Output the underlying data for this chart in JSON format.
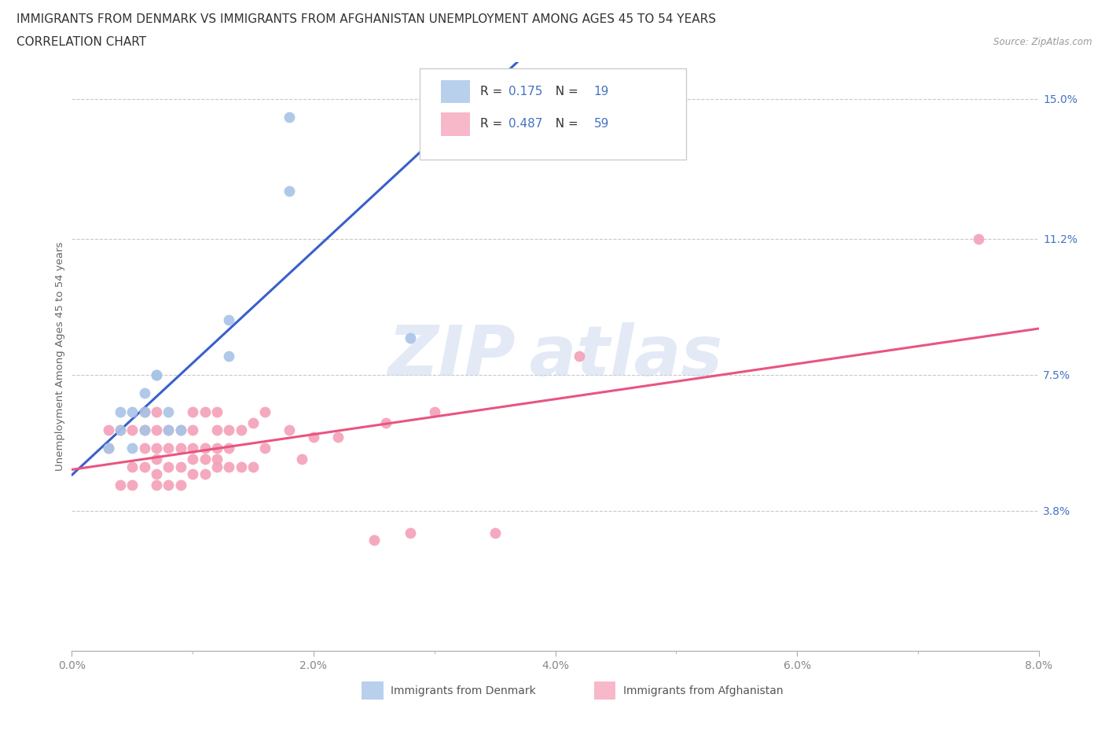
{
  "title_line1": "IMMIGRANTS FROM DENMARK VS IMMIGRANTS FROM AFGHANISTAN UNEMPLOYMENT AMONG AGES 45 TO 54 YEARS",
  "title_line2": "CORRELATION CHART",
  "source_text": "Source: ZipAtlas.com",
  "ylabel": "Unemployment Among Ages 45 to 54 years",
  "xlim": [
    0.0,
    0.08
  ],
  "ylim": [
    0.0,
    0.16
  ],
  "xtick_labels": [
    "0.0%",
    "",
    "2.0%",
    "",
    "4.0%",
    "",
    "6.0%",
    "",
    "8.0%"
  ],
  "xtick_values": [
    0.0,
    0.01,
    0.02,
    0.03,
    0.04,
    0.05,
    0.06,
    0.07,
    0.08
  ],
  "xtick_major_labels": [
    "0.0%",
    "2.0%",
    "4.0%",
    "6.0%",
    "8.0%"
  ],
  "xtick_major_values": [
    0.0,
    0.02,
    0.04,
    0.06,
    0.08
  ],
  "ytick_labels": [
    "3.8%",
    "7.5%",
    "11.2%",
    "15.0%"
  ],
  "ytick_values": [
    0.038,
    0.075,
    0.112,
    0.15
  ],
  "denmark_R": "0.175",
  "denmark_N": "19",
  "afghanistan_R": "0.487",
  "afghanistan_N": "59",
  "denmark_scatter_color": "#a8c4e6",
  "afghanistan_scatter_color": "#f4a0b8",
  "denmark_line_color": "#3a5fcc",
  "afghanistan_line_color": "#e85580",
  "denmark_legend_color": "#b8d0eb",
  "afghanistan_legend_color": "#f7b8ca",
  "watermark_color": "#ccd9f0",
  "denmark_scatter_x": [
    0.003,
    0.004,
    0.004,
    0.005,
    0.005,
    0.006,
    0.006,
    0.006,
    0.007,
    0.007,
    0.008,
    0.008,
    0.009,
    0.013,
    0.028,
    0.013,
    0.018,
    0.018,
    0.03
  ],
  "denmark_scatter_y": [
    0.055,
    0.06,
    0.065,
    0.055,
    0.065,
    0.06,
    0.065,
    0.07,
    0.075,
    0.075,
    0.06,
    0.065,
    0.06,
    0.08,
    0.085,
    0.09,
    0.125,
    0.145,
    0.155
  ],
  "afghanistan_scatter_x": [
    0.003,
    0.003,
    0.004,
    0.004,
    0.005,
    0.005,
    0.005,
    0.006,
    0.006,
    0.006,
    0.006,
    0.007,
    0.007,
    0.007,
    0.007,
    0.007,
    0.007,
    0.008,
    0.008,
    0.008,
    0.008,
    0.009,
    0.009,
    0.009,
    0.009,
    0.01,
    0.01,
    0.01,
    0.01,
    0.01,
    0.011,
    0.011,
    0.011,
    0.011,
    0.012,
    0.012,
    0.012,
    0.012,
    0.012,
    0.013,
    0.013,
    0.013,
    0.014,
    0.014,
    0.015,
    0.015,
    0.016,
    0.016,
    0.018,
    0.019,
    0.02,
    0.022,
    0.025,
    0.026,
    0.028,
    0.03,
    0.035,
    0.042,
    0.075
  ],
  "afghanistan_scatter_y": [
    0.055,
    0.06,
    0.045,
    0.06,
    0.045,
    0.05,
    0.06,
    0.05,
    0.055,
    0.06,
    0.065,
    0.045,
    0.048,
    0.052,
    0.055,
    0.06,
    0.065,
    0.045,
    0.05,
    0.055,
    0.06,
    0.045,
    0.05,
    0.055,
    0.06,
    0.048,
    0.052,
    0.055,
    0.06,
    0.065,
    0.048,
    0.052,
    0.055,
    0.065,
    0.05,
    0.052,
    0.055,
    0.06,
    0.065,
    0.05,
    0.055,
    0.06,
    0.05,
    0.06,
    0.05,
    0.062,
    0.055,
    0.065,
    0.06,
    0.052,
    0.058,
    0.058,
    0.03,
    0.062,
    0.032,
    0.065,
    0.032,
    0.08,
    0.112
  ],
  "background_color": "#ffffff",
  "grid_color": "#bbbbbb",
  "title_fontsize": 11,
  "axis_label_fontsize": 9.5,
  "tick_fontsize": 10,
  "ytick_color": "#4472c4",
  "xtick_color": "#888888",
  "r_n_color": "#4472c4",
  "legend_label_denmark": "Immigrants from Denmark",
  "legend_label_afghanistan": "Immigrants from Afghanistan"
}
